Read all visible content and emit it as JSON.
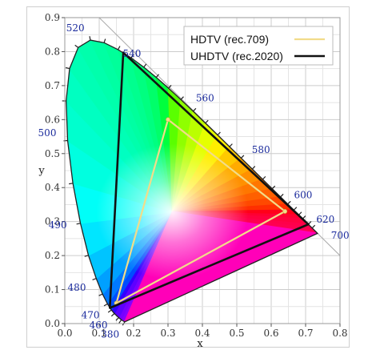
{
  "chart_data": {
    "type": "chromaticity-diagram",
    "xlabel": "x",
    "ylabel": "y",
    "xlim": [
      0.0,
      0.8
    ],
    "ylim": [
      0.0,
      0.9
    ],
    "xticks": [
      "0.0",
      "0.1",
      "0.2",
      "0.3",
      "0.4",
      "0.5",
      "0.6",
      "0.7",
      "0.8"
    ],
    "yticks": [
      "0.0",
      "0.1",
      "0.2",
      "0.3",
      "0.4",
      "0.5",
      "0.6",
      "0.7",
      "0.8",
      "0.9"
    ],
    "grid": true,
    "legend_position": "top-right",
    "spectral_locus": [
      {
        "nm": 380,
        "x": 0.1741,
        "y": 0.005
      },
      {
        "nm": 440,
        "x": 0.1644,
        "y": 0.0109
      },
      {
        "nm": 450,
        "x": 0.1566,
        "y": 0.0177
      },
      {
        "nm": 460,
        "x": 0.144,
        "y": 0.0297
      },
      {
        "nm": 465,
        "x": 0.1355,
        "y": 0.0399
      },
      {
        "nm": 470,
        "x": 0.1241,
        "y": 0.0578
      },
      {
        "nm": 475,
        "x": 0.1096,
        "y": 0.0868
      },
      {
        "nm": 480,
        "x": 0.0913,
        "y": 0.1327
      },
      {
        "nm": 485,
        "x": 0.0687,
        "y": 0.2007
      },
      {
        "nm": 490,
        "x": 0.0454,
        "y": 0.295
      },
      {
        "nm": 495,
        "x": 0.0235,
        "y": 0.4127
      },
      {
        "nm": 500,
        "x": 0.0082,
        "y": 0.5384
      },
      {
        "nm": 505,
        "x": 0.0039,
        "y": 0.6548
      },
      {
        "nm": 510,
        "x": 0.0139,
        "y": 0.7502
      },
      {
        "nm": 515,
        "x": 0.0389,
        "y": 0.812
      },
      {
        "nm": 520,
        "x": 0.0743,
        "y": 0.8338
      },
      {
        "nm": 525,
        "x": 0.1142,
        "y": 0.8262
      },
      {
        "nm": 530,
        "x": 0.1547,
        "y": 0.8059
      },
      {
        "nm": 535,
        "x": 0.1929,
        "y": 0.7816
      },
      {
        "nm": 540,
        "x": 0.2296,
        "y": 0.7543
      },
      {
        "nm": 545,
        "x": 0.2658,
        "y": 0.7243
      },
      {
        "nm": 550,
        "x": 0.3016,
        "y": 0.6923
      },
      {
        "nm": 555,
        "x": 0.3373,
        "y": 0.6589
      },
      {
        "nm": 560,
        "x": 0.3731,
        "y": 0.6245
      },
      {
        "nm": 565,
        "x": 0.4087,
        "y": 0.5896
      },
      {
        "nm": 570,
        "x": 0.4441,
        "y": 0.5547
      },
      {
        "nm": 575,
        "x": 0.4788,
        "y": 0.5202
      },
      {
        "nm": 580,
        "x": 0.5125,
        "y": 0.4866
      },
      {
        "nm": 585,
        "x": 0.5448,
        "y": 0.4544
      },
      {
        "nm": 590,
        "x": 0.5752,
        "y": 0.4242
      },
      {
        "nm": 595,
        "x": 0.6029,
        "y": 0.3965
      },
      {
        "nm": 600,
        "x": 0.627,
        "y": 0.3725
      },
      {
        "nm": 605,
        "x": 0.6482,
        "y": 0.3514
      },
      {
        "nm": 610,
        "x": 0.6658,
        "y": 0.334
      },
      {
        "nm": 615,
        "x": 0.6801,
        "y": 0.3197
      },
      {
        "nm": 620,
        "x": 0.6915,
        "y": 0.3083
      },
      {
        "nm": 630,
        "x": 0.7079,
        "y": 0.292
      },
      {
        "nm": 640,
        "x": 0.719,
        "y": 0.2809
      },
      {
        "nm": 660,
        "x": 0.73,
        "y": 0.27
      },
      {
        "nm": 700,
        "x": 0.7347,
        "y": 0.2653
      }
    ],
    "wavelength_labels": [
      {
        "nm": 380,
        "text": "380"
      },
      {
        "nm": 460,
        "text": "460"
      },
      {
        "nm": 470,
        "text": "470"
      },
      {
        "nm": 480,
        "text": "480"
      },
      {
        "nm": 490,
        "text": "490"
      },
      {
        "nm": 500,
        "text": "500"
      },
      {
        "nm": 520,
        "text": "520"
      },
      {
        "nm": 540,
        "text": "540"
      },
      {
        "nm": 560,
        "text": "560"
      },
      {
        "nm": 580,
        "text": "580"
      },
      {
        "nm": 600,
        "text": "600"
      },
      {
        "nm": 620,
        "text": "620"
      },
      {
        "nm": 700,
        "text": "700"
      }
    ],
    "series": [
      {
        "name": "HDTV (rec.709)",
        "color": "#f2dc8a",
        "points": [
          {
            "x": 0.64,
            "y": 0.33
          },
          {
            "x": 0.3,
            "y": 0.6
          },
          {
            "x": 0.15,
            "y": 0.06
          }
        ]
      },
      {
        "name": "UHDTV (rec.2020)",
        "color": "#111111",
        "points": [
          {
            "x": 0.708,
            "y": 0.292
          },
          {
            "x": 0.17,
            "y": 0.797
          },
          {
            "x": 0.131,
            "y": 0.046
          }
        ]
      }
    ]
  }
}
